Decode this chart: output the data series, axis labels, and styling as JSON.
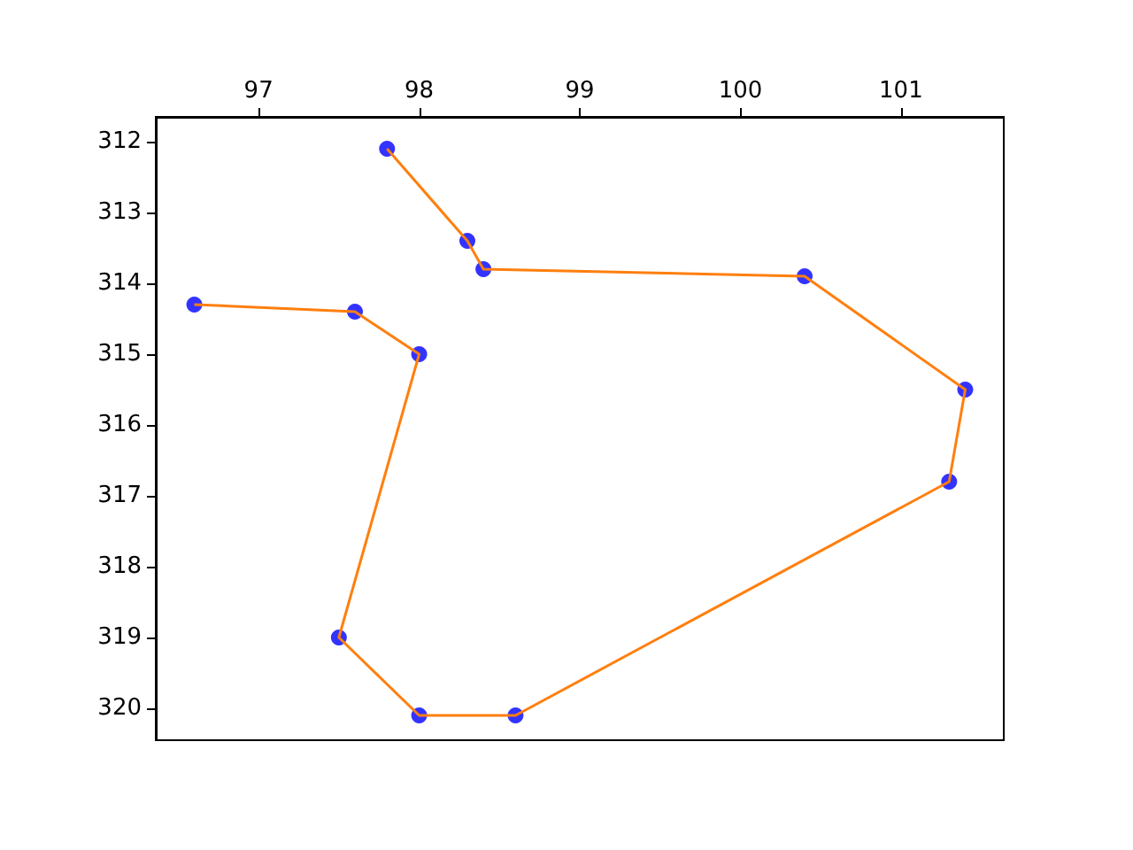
{
  "chart_data": {
    "type": "scatter",
    "xlim": [
      96.36,
      101.64
    ],
    "xticks": [
      97,
      98,
      99,
      100,
      101
    ],
    "ylim": [
      320.45,
      311.65
    ],
    "yticks": [
      312,
      313,
      314,
      315,
      316,
      317,
      318,
      319,
      320
    ],
    "grid": false,
    "series": [
      {
        "color": "#0000ff",
        "marker": "circle",
        "x": [
          97.8,
          98.3,
          98.4,
          100.4,
          101.4,
          101.3,
          98.6,
          98.0,
          97.5,
          98.0,
          97.6,
          96.6
        ],
        "values": [
          312.1,
          313.4,
          313.8,
          313.9,
          315.5,
          316.8,
          320.1,
          320.1,
          319.0,
          315.0,
          314.4,
          314.3
        ]
      },
      {
        "type": "line",
        "color": "#ff7f0e",
        "marker": "none",
        "line_style": "solid",
        "x": [
          97.8,
          98.3,
          98.4,
          100.4,
          101.4,
          101.3,
          98.6,
          98.0,
          97.5,
          98.0,
          97.6,
          96.6
        ],
        "values": [
          312.1,
          313.4,
          313.8,
          313.9,
          315.5,
          316.8,
          320.1,
          320.1,
          319.0,
          315.0,
          314.4,
          314.3
        ]
      }
    ]
  }
}
